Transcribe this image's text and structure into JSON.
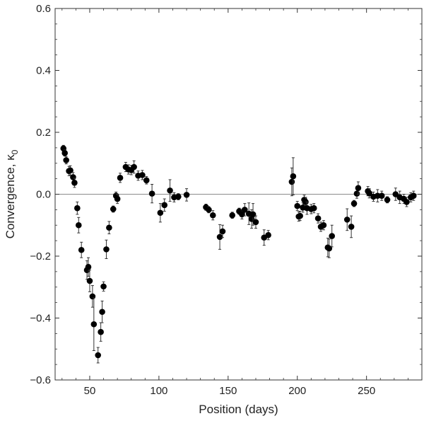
{
  "chart_data": {
    "type": "scatter",
    "xlabel": "Position (days)",
    "ylabel": "Convergence, κ",
    "ylabel_subscript": "0",
    "xlim": [
      25,
      290
    ],
    "ylim": [
      -0.6,
      0.6
    ],
    "x_ticks": [
      50,
      100,
      150,
      200,
      250
    ],
    "y_ticks": [
      -0.6,
      -0.4,
      -0.2,
      0.0,
      0.2,
      0.4,
      0.6
    ],
    "y_tick_labels": [
      "−0.6",
      "−0.4",
      "−0.2",
      "0.0",
      "0.2",
      "0.4",
      "0.6"
    ],
    "reference_line_y": 0,
    "grid": false,
    "marker_color": "#000000",
    "points": [
      {
        "x": 31,
        "y": 0.148,
        "err": 0.01
      },
      {
        "x": 32,
        "y": 0.133,
        "err": 0.01
      },
      {
        "x": 33,
        "y": 0.11,
        "err": 0.012
      },
      {
        "x": 35,
        "y": 0.075,
        "err": 0.015
      },
      {
        "x": 36,
        "y": 0.077,
        "err": 0.015
      },
      {
        "x": 38,
        "y": 0.055,
        "err": 0.015
      },
      {
        "x": 39,
        "y": 0.037,
        "err": 0.015
      },
      {
        "x": 41,
        "y": -0.045,
        "err": 0.02
      },
      {
        "x": 42,
        "y": -0.1,
        "err": 0.025
      },
      {
        "x": 44,
        "y": -0.18,
        "err": 0.025
      },
      {
        "x": 48,
        "y": -0.245,
        "err": 0.03
      },
      {
        "x": 49,
        "y": -0.235,
        "err": 0.03
      },
      {
        "x": 50,
        "y": -0.28,
        "err": 0.035
      },
      {
        "x": 52,
        "y": -0.33,
        "err": 0.035
      },
      {
        "x": 53,
        "y": -0.42,
        "err": 0.085
      },
      {
        "x": 56,
        "y": -0.52,
        "err": 0.025
      },
      {
        "x": 58,
        "y": -0.445,
        "err": 0.03
      },
      {
        "x": 59,
        "y": -0.38,
        "err": 0.035
      },
      {
        "x": 60,
        "y": -0.298,
        "err": 0.015
      },
      {
        "x": 62,
        "y": -0.178,
        "err": 0.03
      },
      {
        "x": 64,
        "y": -0.108,
        "err": 0.02
      },
      {
        "x": 67,
        "y": -0.048,
        "err": 0.01
      },
      {
        "x": 69,
        "y": -0.005,
        "err": 0.012
      },
      {
        "x": 70,
        "y": -0.015,
        "err": 0.015
      },
      {
        "x": 72,
        "y": 0.053,
        "err": 0.015
      },
      {
        "x": 76,
        "y": 0.088,
        "err": 0.015
      },
      {
        "x": 78,
        "y": 0.08,
        "err": 0.015
      },
      {
        "x": 80,
        "y": 0.078,
        "err": 0.015
      },
      {
        "x": 82,
        "y": 0.088,
        "err": 0.02
      },
      {
        "x": 85,
        "y": 0.06,
        "err": 0.015
      },
      {
        "x": 88,
        "y": 0.062,
        "err": 0.015
      },
      {
        "x": 91,
        "y": 0.045,
        "err": 0.012
      },
      {
        "x": 95,
        "y": 0.002,
        "err": 0.03
      },
      {
        "x": 101,
        "y": -0.06,
        "err": 0.03
      },
      {
        "x": 104,
        "y": -0.035,
        "err": 0.02
      },
      {
        "x": 108,
        "y": 0.012,
        "err": 0.035
      },
      {
        "x": 111,
        "y": -0.01,
        "err": 0.015
      },
      {
        "x": 114,
        "y": -0.008,
        "err": 0.01
      },
      {
        "x": 120,
        "y": -0.002,
        "err": 0.02
      },
      {
        "x": 134,
        "y": -0.042,
        "err": 0.01
      },
      {
        "x": 136,
        "y": -0.05,
        "err": 0.01
      },
      {
        "x": 139,
        "y": -0.068,
        "err": 0.015
      },
      {
        "x": 144,
        "y": -0.138,
        "err": 0.04
      },
      {
        "x": 146,
        "y": -0.12,
        "err": 0.02
      },
      {
        "x": 153,
        "y": -0.068,
        "err": 0.01
      },
      {
        "x": 158,
        "y": -0.055,
        "err": 0.01
      },
      {
        "x": 160,
        "y": -0.065,
        "err": 0.015
      },
      {
        "x": 162,
        "y": -0.05,
        "err": 0.02
      },
      {
        "x": 165,
        "y": -0.063,
        "err": 0.035
      },
      {
        "x": 167,
        "y": -0.08,
        "err": 0.03
      },
      {
        "x": 168,
        "y": -0.065,
        "err": 0.035
      },
      {
        "x": 170,
        "y": -0.09,
        "err": 0.02
      },
      {
        "x": 176,
        "y": -0.14,
        "err": 0.025
      },
      {
        "x": 179,
        "y": -0.132,
        "err": 0.015
      },
      {
        "x": 196,
        "y": 0.04,
        "err": 0.045
      },
      {
        "x": 197,
        "y": 0.058,
        "err": 0.06
      },
      {
        "x": 200,
        "y": -0.038,
        "err": 0.015
      },
      {
        "x": 201,
        "y": -0.072,
        "err": 0.015
      },
      {
        "x": 202,
        "y": -0.07,
        "err": 0.015
      },
      {
        "x": 204,
        "y": -0.043,
        "err": 0.015
      },
      {
        "x": 205,
        "y": -0.018,
        "err": 0.015
      },
      {
        "x": 206,
        "y": -0.025,
        "err": 0.015
      },
      {
        "x": 207,
        "y": -0.045,
        "err": 0.02
      },
      {
        "x": 210,
        "y": -0.048,
        "err": 0.015
      },
      {
        "x": 212,
        "y": -0.045,
        "err": 0.015
      },
      {
        "x": 215,
        "y": -0.078,
        "err": 0.015
      },
      {
        "x": 217,
        "y": -0.105,
        "err": 0.015
      },
      {
        "x": 219,
        "y": -0.1,
        "err": 0.015
      },
      {
        "x": 222,
        "y": -0.172,
        "err": 0.03
      },
      {
        "x": 223,
        "y": -0.175,
        "err": 0.03
      },
      {
        "x": 225,
        "y": -0.135,
        "err": 0.035
      },
      {
        "x": 236,
        "y": -0.082,
        "err": 0.035
      },
      {
        "x": 239,
        "y": -0.105,
        "err": 0.035
      },
      {
        "x": 241,
        "y": -0.03,
        "err": 0.01
      },
      {
        "x": 243,
        "y": 0.002,
        "err": 0.015
      },
      {
        "x": 244,
        "y": 0.02,
        "err": 0.02
      },
      {
        "x": 251,
        "y": 0.01,
        "err": 0.015
      },
      {
        "x": 252,
        "y": 0.003,
        "err": 0.015
      },
      {
        "x": 255,
        "y": -0.008,
        "err": 0.015
      },
      {
        "x": 258,
        "y": -0.005,
        "err": 0.02
      },
      {
        "x": 261,
        "y": -0.005,
        "err": 0.015
      },
      {
        "x": 265,
        "y": -0.018,
        "err": 0.01
      },
      {
        "x": 271,
        "y": 0.0,
        "err": 0.02
      },
      {
        "x": 274,
        "y": -0.01,
        "err": 0.02
      },
      {
        "x": 277,
        "y": -0.015,
        "err": 0.015
      },
      {
        "x": 279,
        "y": -0.025,
        "err": 0.015
      },
      {
        "x": 282,
        "y": -0.01,
        "err": 0.015
      },
      {
        "x": 284,
        "y": -0.005,
        "err": 0.015
      }
    ]
  }
}
